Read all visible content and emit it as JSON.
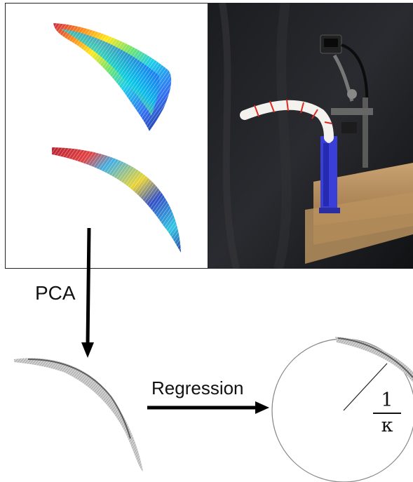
{
  "labels": {
    "pca": "PCA",
    "regression": "Regression",
    "curvature_numerator": "1",
    "curvature_denominator": "κ"
  },
  "colors": {
    "arrow": "#000000",
    "circle": "#888888",
    "robot_body": "#3a3fd8",
    "background_cloth": "#141518",
    "wood": "#b58d5c",
    "marker": "#e0281e"
  }
}
